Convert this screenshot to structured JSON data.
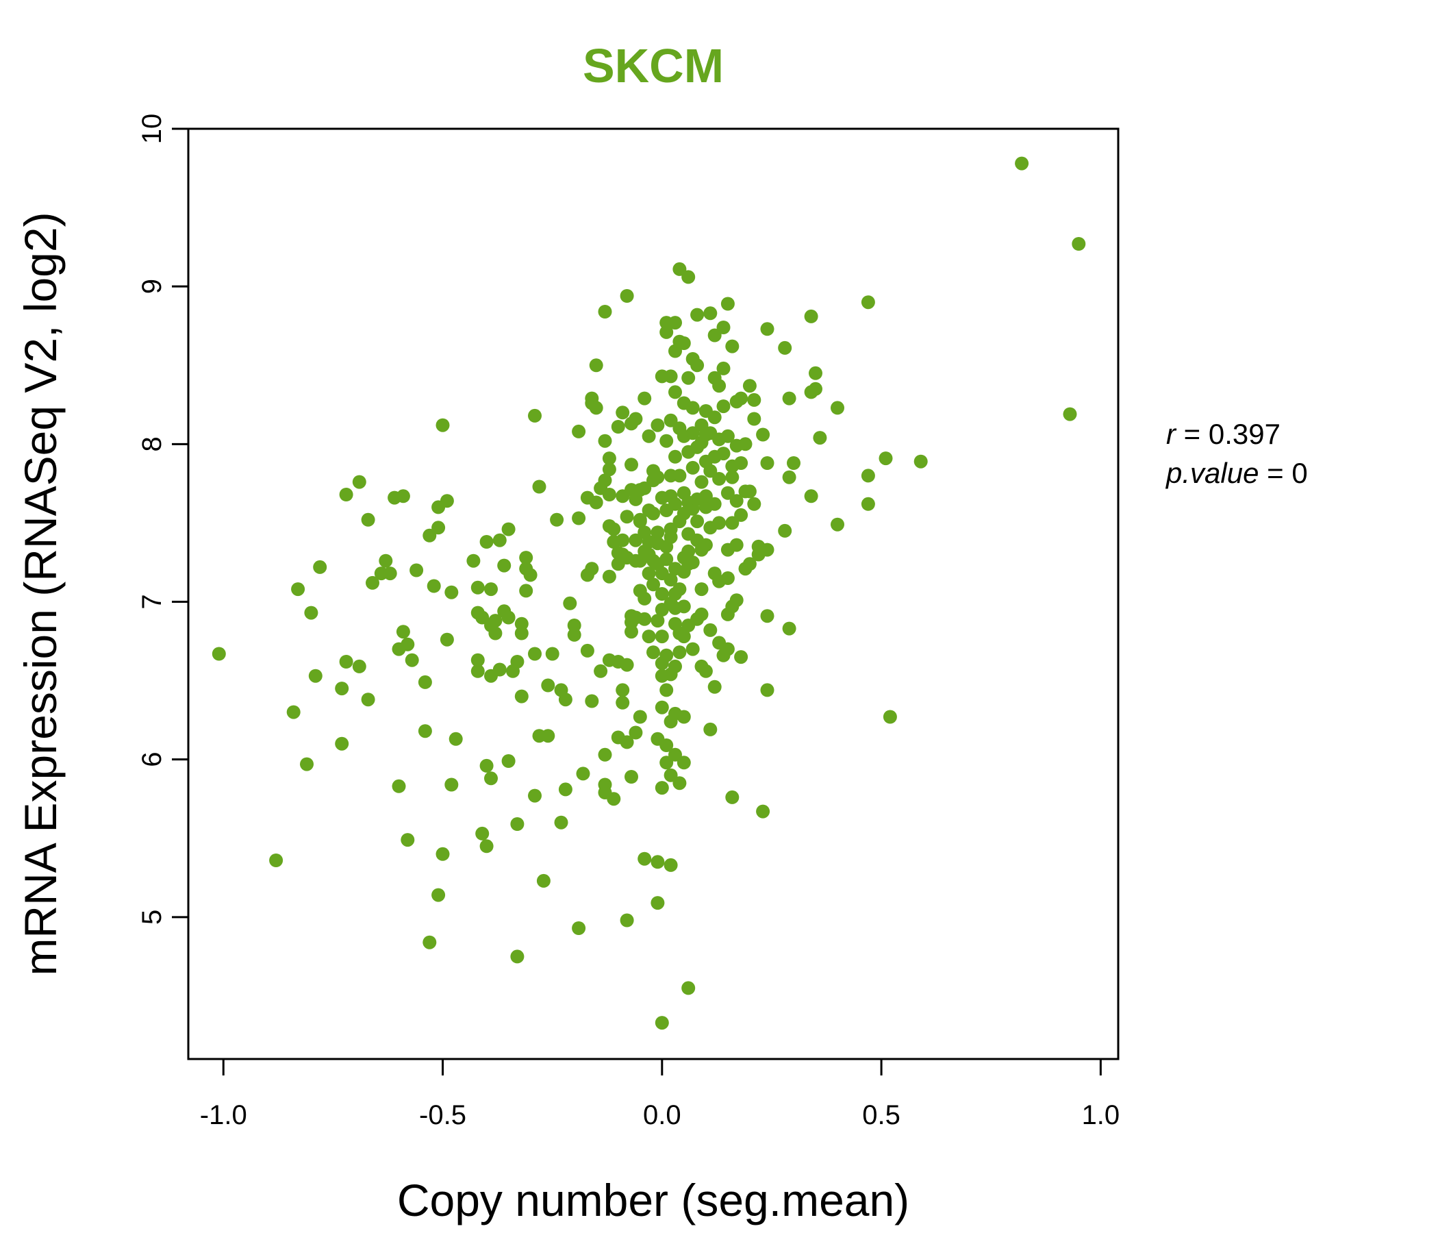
{
  "colors": {
    "accent": "#66a61e",
    "axis": "#000000"
  },
  "chart_data": {
    "type": "scatter",
    "title": "SKCM",
    "xlabel": "Copy number (seg.mean)",
    "ylabel": "mRNA Expression (RNASeq V2, log2)",
    "xlim": [
      -1.08,
      1.04
    ],
    "ylim": [
      4.1,
      10.0
    ],
    "xticks": [
      -1.0,
      -0.5,
      0.0,
      0.5,
      1.0
    ],
    "xtick_labels": [
      "-1.0",
      "-0.5",
      "0.0",
      "0.5",
      "1.0"
    ],
    "yticks": [
      5,
      6,
      7,
      8,
      9,
      10
    ],
    "ytick_labels": [
      "5",
      "6",
      "7",
      "8",
      "9",
      "10"
    ],
    "grid": false,
    "stats": {
      "r_label": "r",
      "r_value": "0.397",
      "p_label": "p.value",
      "p_value": "0"
    },
    "points": [
      [
        0.82,
        9.78
      ],
      [
        0.95,
        9.27
      ],
      [
        0.93,
        8.19
      ],
      [
        -1.01,
        6.67
      ],
      [
        -0.88,
        5.36
      ],
      [
        -0.84,
        6.3
      ],
      [
        -0.83,
        7.08
      ],
      [
        -0.81,
        5.97
      ],
      [
        -0.8,
        6.93
      ],
      [
        -0.79,
        6.53
      ],
      [
        -0.78,
        7.22
      ],
      [
        -0.73,
        6.45
      ],
      [
        -0.73,
        6.1
      ],
      [
        -0.72,
        6.62
      ],
      [
        -0.72,
        7.68
      ],
      [
        -0.69,
        6.59
      ],
      [
        -0.69,
        7.76
      ],
      [
        -0.67,
        7.52
      ],
      [
        -0.67,
        6.38
      ],
      [
        -0.66,
        7.12
      ],
      [
        -0.64,
        7.18
      ],
      [
        -0.63,
        7.26
      ],
      [
        -0.62,
        7.18
      ],
      [
        -0.61,
        7.66
      ],
      [
        -0.6,
        5.83
      ],
      [
        -0.6,
        6.7
      ],
      [
        -0.59,
        7.67
      ],
      [
        -0.59,
        6.81
      ],
      [
        -0.58,
        6.73
      ],
      [
        -0.58,
        5.49
      ],
      [
        -0.57,
        6.63
      ],
      [
        -0.56,
        7.2
      ],
      [
        -0.54,
        6.49
      ],
      [
        -0.54,
        6.18
      ],
      [
        -0.53,
        7.42
      ],
      [
        -0.53,
        4.84
      ],
      [
        -0.52,
        7.1
      ],
      [
        -0.51,
        7.6
      ],
      [
        -0.51,
        7.47
      ],
      [
        -0.51,
        5.14
      ],
      [
        -0.5,
        8.12
      ],
      [
        -0.5,
        5.4
      ],
      [
        -0.49,
        6.76
      ],
      [
        -0.49,
        7.64
      ],
      [
        -0.48,
        7.06
      ],
      [
        -0.48,
        5.84
      ],
      [
        -0.47,
        6.13
      ],
      [
        -0.43,
        7.26
      ],
      [
        -0.42,
        6.63
      ],
      [
        -0.42,
        6.56
      ],
      [
        -0.42,
        7.09
      ],
      [
        -0.42,
        6.93
      ],
      [
        -0.41,
        5.53
      ],
      [
        -0.41,
        6.9
      ],
      [
        -0.4,
        5.45
      ],
      [
        -0.4,
        5.96
      ],
      [
        -0.4,
        7.38
      ],
      [
        -0.39,
        6.53
      ],
      [
        -0.39,
        5.88
      ],
      [
        -0.39,
        6.85
      ],
      [
        -0.39,
        7.08
      ],
      [
        -0.38,
        6.8
      ],
      [
        -0.38,
        6.88
      ],
      [
        -0.37,
        7.39
      ],
      [
        -0.37,
        6.57
      ],
      [
        -0.36,
        7.23
      ],
      [
        -0.36,
        6.94
      ],
      [
        -0.35,
        7.46
      ],
      [
        -0.35,
        5.99
      ],
      [
        -0.35,
        6.9
      ],
      [
        -0.34,
        6.56
      ],
      [
        -0.33,
        6.62
      ],
      [
        -0.33,
        4.75
      ],
      [
        -0.33,
        5.59
      ],
      [
        -0.32,
        6.8
      ],
      [
        -0.32,
        6.86
      ],
      [
        -0.32,
        6.4
      ],
      [
        -0.31,
        7.21
      ],
      [
        -0.31,
        7.28
      ],
      [
        -0.31,
        7.07
      ],
      [
        -0.3,
        7.17
      ],
      [
        -0.29,
        8.18
      ],
      [
        -0.29,
        5.77
      ],
      [
        -0.29,
        6.67
      ],
      [
        -0.28,
        7.73
      ],
      [
        -0.28,
        6.15
      ],
      [
        -0.27,
        5.23
      ],
      [
        -0.26,
        6.15
      ],
      [
        -0.26,
        6.47
      ],
      [
        -0.25,
        6.67
      ],
      [
        -0.24,
        7.52
      ],
      [
        -0.23,
        6.44
      ],
      [
        -0.23,
        5.6
      ],
      [
        -0.22,
        6.38
      ],
      [
        -0.22,
        5.81
      ],
      [
        -0.21,
        6.99
      ],
      [
        -0.2,
        6.79
      ],
      [
        -0.2,
        6.85
      ],
      [
        -0.19,
        7.53
      ],
      [
        -0.19,
        8.08
      ],
      [
        -0.19,
        4.93
      ],
      [
        -0.18,
        5.91
      ],
      [
        -0.17,
        7.66
      ],
      [
        -0.17,
        6.69
      ],
      [
        -0.17,
        7.17
      ],
      [
        -0.16,
        8.29
      ],
      [
        -0.16,
        7.21
      ],
      [
        -0.16,
        8.26
      ],
      [
        -0.16,
        6.37
      ],
      [
        -0.15,
        8.5
      ],
      [
        -0.15,
        8.23
      ],
      [
        -0.15,
        7.63
      ],
      [
        -0.14,
        7.72
      ],
      [
        -0.14,
        6.56
      ],
      [
        -0.13,
        6.03
      ],
      [
        -0.13,
        5.84
      ],
      [
        -0.13,
        5.79
      ],
      [
        -0.13,
        8.02
      ],
      [
        -0.13,
        8.84
      ],
      [
        -0.13,
        7.77
      ],
      [
        -0.12,
        7.91
      ],
      [
        -0.12,
        7.16
      ],
      [
        -0.12,
        7.84
      ],
      [
        -0.12,
        7.48
      ],
      [
        -0.12,
        7.68
      ],
      [
        -0.12,
        6.63
      ],
      [
        -0.11,
        5.75
      ],
      [
        -0.11,
        7.38
      ],
      [
        -0.11,
        7.46
      ],
      [
        -0.1,
        8.11
      ],
      [
        -0.1,
        6.14
      ],
      [
        -0.1,
        7.31
      ],
      [
        -0.1,
        6.62
      ],
      [
        -0.1,
        7.24
      ],
      [
        -0.09,
        8.2
      ],
      [
        -0.09,
        6.36
      ],
      [
        -0.09,
        7.39
      ],
      [
        -0.09,
        6.44
      ],
      [
        -0.09,
        7.67
      ],
      [
        -0.09,
        7.3
      ],
      [
        -0.08,
        8.94
      ],
      [
        -0.08,
        6.11
      ],
      [
        -0.08,
        7.28
      ],
      [
        -0.08,
        4.98
      ],
      [
        -0.08,
        7.54
      ],
      [
        -0.08,
        6.6
      ],
      [
        -0.07,
        6.81
      ],
      [
        -0.07,
        6.91
      ],
      [
        -0.07,
        7.71
      ],
      [
        -0.07,
        8.13
      ],
      [
        -0.07,
        5.89
      ],
      [
        -0.07,
        7.87
      ],
      [
        -0.07,
        6.87
      ],
      [
        -0.06,
        7.39
      ],
      [
        -0.06,
        7.65
      ],
      [
        -0.06,
        7.26
      ],
      [
        -0.06,
        6.9
      ],
      [
        -0.06,
        8.16
      ],
      [
        -0.06,
        6.17
      ],
      [
        -0.05,
        7.51
      ],
      [
        -0.05,
        6.27
      ],
      [
        -0.05,
        7.26
      ],
      [
        -0.05,
        7.52
      ],
      [
        -0.05,
        7.71
      ],
      [
        -0.05,
        7.07
      ],
      [
        -0.04,
        8.29
      ],
      [
        -0.04,
        6.89
      ],
      [
        -0.04,
        7.32
      ],
      [
        -0.04,
        7.44
      ],
      [
        -0.04,
        5.37
      ],
      [
        -0.04,
        7.72
      ],
      [
        -0.04,
        7.02
      ],
      [
        -0.03,
        6.78
      ],
      [
        -0.03,
        7.58
      ],
      [
        -0.03,
        8.05
      ],
      [
        -0.03,
        7.38
      ],
      [
        -0.03,
        7.3
      ],
      [
        -0.03,
        7.18
      ],
      [
        -0.02,
        7.83
      ],
      [
        -0.02,
        7.77
      ],
      [
        -0.02,
        7.11
      ],
      [
        -0.02,
        7.56
      ],
      [
        -0.02,
        6.68
      ],
      [
        -0.02,
        7.26
      ],
      [
        -0.01,
        8.12
      ],
      [
        -0.01,
        5.09
      ],
      [
        -0.01,
        6.13
      ],
      [
        -0.01,
        7.79
      ],
      [
        -0.01,
        6.88
      ],
      [
        -0.01,
        7.44
      ],
      [
        -0.01,
        7.37
      ],
      [
        -0.01,
        5.35
      ],
      [
        -0.01,
        7.24
      ],
      [
        0.0,
        8.43
      ],
      [
        0.0,
        6.33
      ],
      [
        0.0,
        7.18
      ],
      [
        0.0,
        5.82
      ],
      [
        0.0,
        6.61
      ],
      [
        0.0,
        7.05
      ],
      [
        0.0,
        6.78
      ],
      [
        0.0,
        6.95
      ],
      [
        0.0,
        7.66
      ],
      [
        0.0,
        6.53
      ],
      [
        0.0,
        4.33
      ],
      [
        0.01,
        8.77
      ],
      [
        0.01,
        8.71
      ],
      [
        0.01,
        7.27
      ],
      [
        0.01,
        7.58
      ],
      [
        0.01,
        6.09
      ],
      [
        0.01,
        6.66
      ],
      [
        0.01,
        8.02
      ],
      [
        0.01,
        6.44
      ],
      [
        0.01,
        5.98
      ],
      [
        0.01,
        7.35
      ],
      [
        0.02,
        8.15
      ],
      [
        0.02,
        6.99
      ],
      [
        0.02,
        7.41
      ],
      [
        0.02,
        7.14
      ],
      [
        0.02,
        6.24
      ],
      [
        0.02,
        5.9
      ],
      [
        0.02,
        7.46
      ],
      [
        0.02,
        7.8
      ],
      [
        0.02,
        5.33
      ],
      [
        0.02,
        8.43
      ],
      [
        0.02,
        7.67
      ],
      [
        0.02,
        6.54
      ],
      [
        0.03,
        8.77
      ],
      [
        0.03,
        8.59
      ],
      [
        0.03,
        6.86
      ],
      [
        0.03,
        7.21
      ],
      [
        0.03,
        7.62
      ],
      [
        0.03,
        6.59
      ],
      [
        0.03,
        7.92
      ],
      [
        0.03,
        6.29
      ],
      [
        0.03,
        6.96
      ],
      [
        0.03,
        7.05
      ],
      [
        0.03,
        6.03
      ],
      [
        0.03,
        8.33
      ],
      [
        0.04,
        9.11
      ],
      [
        0.04,
        8.65
      ],
      [
        0.04,
        7.8
      ],
      [
        0.04,
        8.1
      ],
      [
        0.04,
        6.8
      ],
      [
        0.04,
        7.51
      ],
      [
        0.04,
        6.68
      ],
      [
        0.04,
        5.85
      ],
      [
        0.04,
        7.08
      ],
      [
        0.05,
        8.64
      ],
      [
        0.05,
        8.26
      ],
      [
        0.05,
        7.28
      ],
      [
        0.05,
        7.69
      ],
      [
        0.05,
        6.27
      ],
      [
        0.05,
        7.56
      ],
      [
        0.05,
        7.19
      ],
      [
        0.05,
        6.97
      ],
      [
        0.05,
        5.98
      ],
      [
        0.05,
        8.05
      ],
      [
        0.05,
        6.78
      ],
      [
        0.06,
        9.06
      ],
      [
        0.06,
        7.95
      ],
      [
        0.06,
        8.42
      ],
      [
        0.06,
        7.24
      ],
      [
        0.06,
        7.43
      ],
      [
        0.06,
        6.85
      ],
      [
        0.06,
        4.55
      ],
      [
        0.06,
        7.63
      ],
      [
        0.06,
        7.32
      ],
      [
        0.07,
        8.54
      ],
      [
        0.07,
        7.85
      ],
      [
        0.07,
        7.59
      ],
      [
        0.07,
        7.25
      ],
      [
        0.07,
        8.23
      ],
      [
        0.07,
        6.7
      ],
      [
        0.07,
        8.07
      ],
      [
        0.08,
        8.82
      ],
      [
        0.08,
        7.65
      ],
      [
        0.08,
        7.98
      ],
      [
        0.08,
        7.39
      ],
      [
        0.08,
        6.89
      ],
      [
        0.08,
        7.51
      ],
      [
        0.08,
        8.5
      ],
      [
        0.09,
        8.12
      ],
      [
        0.09,
        7.76
      ],
      [
        0.09,
        7.08
      ],
      [
        0.09,
        6.92
      ],
      [
        0.09,
        7.33
      ],
      [
        0.09,
        8.01
      ],
      [
        0.09,
        6.59
      ],
      [
        0.1,
        8.21
      ],
      [
        0.1,
        7.89
      ],
      [
        0.1,
        7.6
      ],
      [
        0.1,
        8.06
      ],
      [
        0.1,
        7.67
      ],
      [
        0.1,
        6.56
      ],
      [
        0.1,
        7.36
      ],
      [
        0.11,
        8.83
      ],
      [
        0.11,
        7.83
      ],
      [
        0.11,
        7.47
      ],
      [
        0.11,
        6.82
      ],
      [
        0.11,
        6.19
      ],
      [
        0.11,
        8.07
      ],
      [
        0.12,
        8.69
      ],
      [
        0.12,
        8.42
      ],
      [
        0.12,
        7.92
      ],
      [
        0.12,
        7.18
      ],
      [
        0.12,
        7.62
      ],
      [
        0.12,
        6.46
      ],
      [
        0.12,
        8.17
      ],
      [
        0.13,
        8.37
      ],
      [
        0.13,
        7.78
      ],
      [
        0.13,
        8.03
      ],
      [
        0.13,
        7.5
      ],
      [
        0.13,
        7.13
      ],
      [
        0.13,
        6.74
      ],
      [
        0.14,
        8.74
      ],
      [
        0.14,
        8.48
      ],
      [
        0.14,
        7.94
      ],
      [
        0.14,
        8.24
      ],
      [
        0.14,
        6.66
      ],
      [
        0.15,
        8.89
      ],
      [
        0.15,
        7.69
      ],
      [
        0.15,
        7.33
      ],
      [
        0.15,
        8.05
      ],
      [
        0.15,
        6.92
      ],
      [
        0.15,
        6.7
      ],
      [
        0.15,
        7.15
      ],
      [
        0.16,
        8.62
      ],
      [
        0.16,
        7.86
      ],
      [
        0.16,
        7.5
      ],
      [
        0.16,
        5.76
      ],
      [
        0.16,
        7.79
      ],
      [
        0.16,
        6.97
      ],
      [
        0.17,
        8.27
      ],
      [
        0.17,
        7.99
      ],
      [
        0.17,
        7.36
      ],
      [
        0.17,
        7.01
      ],
      [
        0.17,
        7.64
      ],
      [
        0.18,
        8.29
      ],
      [
        0.18,
        7.55
      ],
      [
        0.18,
        7.88
      ],
      [
        0.18,
        6.65
      ],
      [
        0.19,
        7.7
      ],
      [
        0.19,
        8.0
      ],
      [
        0.19,
        7.21
      ],
      [
        0.2,
        8.37
      ],
      [
        0.2,
        7.7
      ],
      [
        0.2,
        7.24
      ],
      [
        0.21,
        8.28
      ],
      [
        0.21,
        8.16
      ],
      [
        0.21,
        7.62
      ],
      [
        0.22,
        7.35
      ],
      [
        0.22,
        7.3
      ],
      [
        0.23,
        5.67
      ],
      [
        0.23,
        8.06
      ],
      [
        0.24,
        8.73
      ],
      [
        0.24,
        7.88
      ],
      [
        0.24,
        6.91
      ],
      [
        0.24,
        7.33
      ],
      [
        0.24,
        6.44
      ],
      [
        0.28,
        8.61
      ],
      [
        0.28,
        7.45
      ],
      [
        0.29,
        8.29
      ],
      [
        0.29,
        7.79
      ],
      [
        0.29,
        6.83
      ],
      [
        0.3,
        7.88
      ],
      [
        0.34,
        8.81
      ],
      [
        0.34,
        8.33
      ],
      [
        0.34,
        7.67
      ],
      [
        0.35,
        8.35
      ],
      [
        0.35,
        8.45
      ],
      [
        0.36,
        8.04
      ],
      [
        0.4,
        7.49
      ],
      [
        0.4,
        8.23
      ],
      [
        0.47,
        8.9
      ],
      [
        0.47,
        7.62
      ],
      [
        0.47,
        7.8
      ],
      [
        0.51,
        7.91
      ],
      [
        0.52,
        6.27
      ],
      [
        0.59,
        7.89
      ]
    ]
  }
}
